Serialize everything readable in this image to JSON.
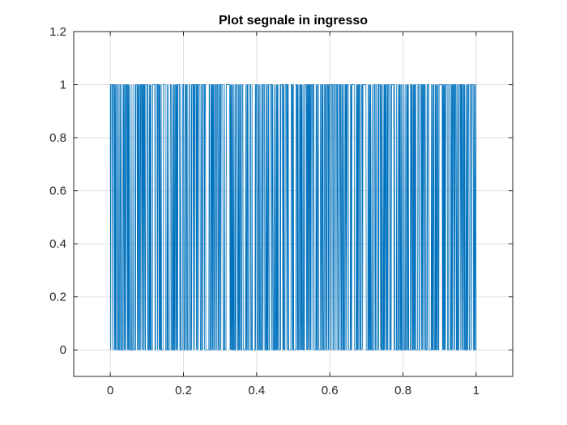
{
  "chart_data": {
    "type": "line",
    "title": "Plot segnale in ingresso",
    "xlabel": "",
    "ylabel": "",
    "xlim": [
      -0.1,
      1.1
    ],
    "ylim": [
      -0.1,
      1.2
    ],
    "xticks": [
      0,
      0.2,
      0.4,
      0.6,
      0.8,
      1
    ],
    "xtick_labels": [
      "0",
      "0.2",
      "0.4",
      "0.6",
      "0.8",
      "1"
    ],
    "yticks": [
      0,
      0.2,
      0.4,
      0.6,
      0.8,
      1,
      1.2
    ],
    "ytick_labels": [
      "0",
      "0.2",
      "0.4",
      "0.6",
      "0.8",
      "1",
      "1.2"
    ],
    "grid": true,
    "legend": "none",
    "line_color": "#0072BD",
    "signal_description": "binary random signal switching between 0 and 1",
    "x_range": [
      0,
      1
    ],
    "levels": [
      0,
      1
    ],
    "series": [
      {
        "values_note": "binary sequence sampled uniformly on [0,1]",
        "x_start": 0,
        "x_end": 1,
        "sample_count": 1000
      }
    ]
  }
}
